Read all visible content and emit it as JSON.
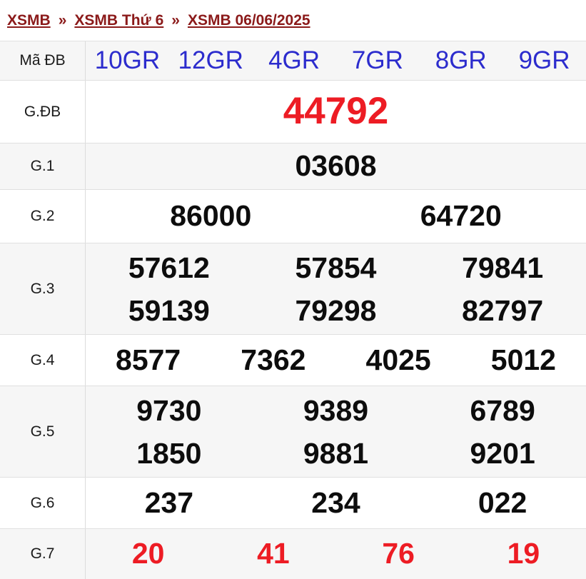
{
  "breadcrumb": {
    "separator": "»",
    "items": [
      {
        "label": "XSMB"
      },
      {
        "label": "XSMB Thứ 6"
      },
      {
        "label": "XSMB 06/06/2025"
      }
    ]
  },
  "colors": {
    "breadcrumb_link": "#8b1a1a",
    "code_blue": "#2c2ccd",
    "special_red": "#ed1c24",
    "number_black": "#0d0d0d",
    "row_stripe": "#f6f6f6",
    "row_border": "#e0e0e0"
  },
  "results_table": {
    "rows": [
      {
        "label": "Mã ĐB",
        "values": [
          "10GR",
          "12GR",
          "4GR",
          "7GR",
          "8GR",
          "9GR"
        ]
      },
      {
        "label": "G.ĐB",
        "values": [
          "44792"
        ]
      },
      {
        "label": "G.1",
        "values": [
          "03608"
        ]
      },
      {
        "label": "G.2",
        "values": [
          "86000",
          "64720"
        ]
      },
      {
        "label": "G.3",
        "values": [
          "57612",
          "57854",
          "79841",
          "59139",
          "79298",
          "82797"
        ]
      },
      {
        "label": "G.4",
        "values": [
          "8577",
          "7362",
          "4025",
          "5012"
        ]
      },
      {
        "label": "G.5",
        "values": [
          "9730",
          "9389",
          "6789",
          "1850",
          "9881",
          "9201"
        ]
      },
      {
        "label": "G.6",
        "values": [
          "237",
          "234",
          "022"
        ]
      },
      {
        "label": "G.7",
        "values": [
          "20",
          "41",
          "76",
          "19"
        ]
      }
    ]
  }
}
